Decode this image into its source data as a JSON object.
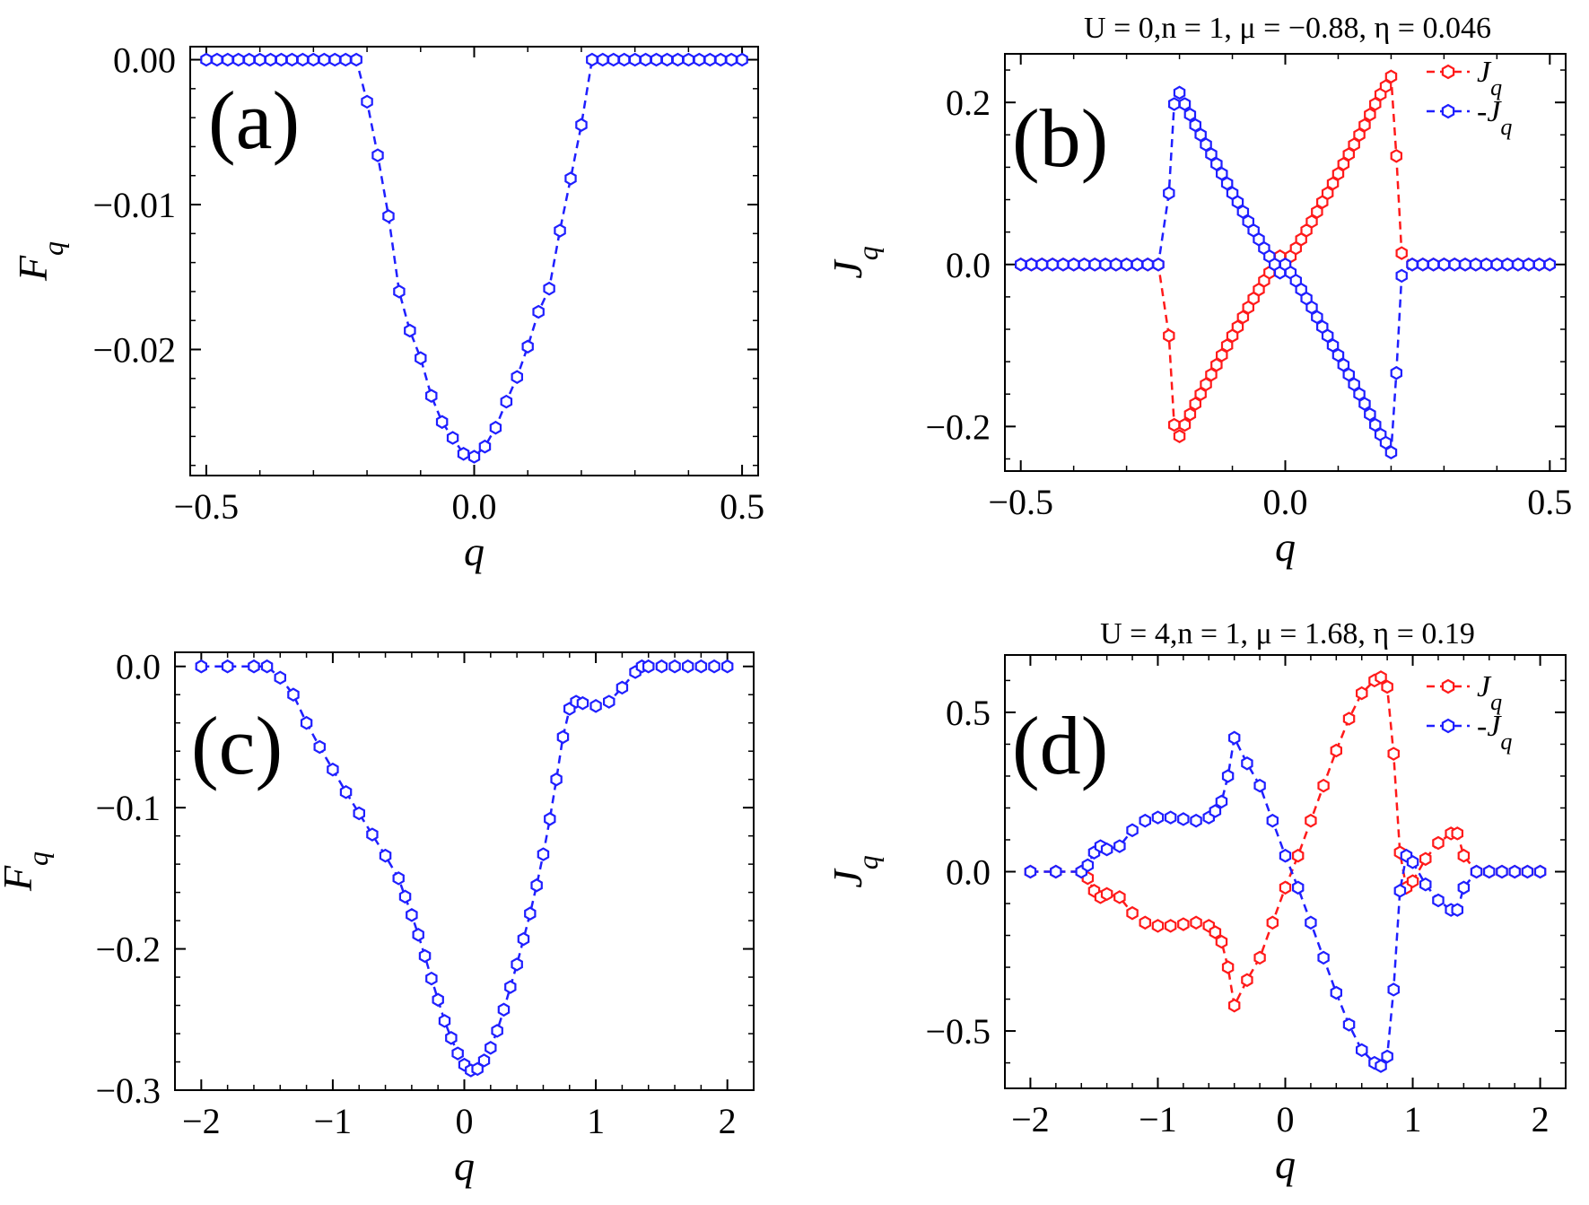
{
  "figure": {
    "colors": {
      "red": "#ff1a1a",
      "blue": "#1f1fff"
    }
  },
  "chart_data": [
    {
      "panel": "a",
      "type": "line",
      "panel_label": "(a)",
      "title": "",
      "xlabel": "q",
      "ylabel": "F_q",
      "xlim": [
        -0.53,
        0.53
      ],
      "ylim": [
        -0.0287,
        0.0009
      ],
      "xticks": [
        -0.5,
        0.0,
        0.5
      ],
      "xtick_labels": [
        "−0.5",
        "0.0",
        "0.5"
      ],
      "yticks": [
        0.0,
        -0.01,
        -0.02
      ],
      "ytick_labels": [
        "0.00",
        "−0.01",
        "−0.02"
      ],
      "legend": [],
      "series": [
        {
          "color": "#1f1fff",
          "x": [
            -0.5,
            -0.48,
            -0.46,
            -0.44,
            -0.42,
            -0.4,
            -0.38,
            -0.36,
            -0.34,
            -0.32,
            -0.3,
            -0.28,
            -0.26,
            -0.24,
            -0.22,
            -0.2,
            -0.18,
            -0.16,
            -0.14,
            -0.12,
            -0.1,
            -0.08,
            -0.06,
            -0.04,
            -0.02,
            0.0,
            0.02,
            0.04,
            0.06,
            0.08,
            0.1,
            0.12,
            0.14,
            0.16,
            0.18,
            0.2,
            0.22,
            0.24,
            0.26,
            0.28,
            0.3,
            0.32,
            0.34,
            0.36,
            0.38,
            0.4,
            0.42,
            0.44,
            0.46,
            0.48,
            0.5
          ],
          "y": [
            0,
            0,
            0,
            0,
            0,
            0,
            0,
            0,
            0,
            0,
            0,
            0,
            0,
            0,
            0,
            -0.0029,
            -0.0066,
            -0.0108,
            -0.016,
            -0.0187,
            -0.0206,
            -0.0232,
            -0.025,
            -0.0261,
            -0.0272,
            -0.0274,
            -0.0267,
            -0.0254,
            -0.0236,
            -0.0219,
            -0.0198,
            -0.0174,
            -0.0158,
            -0.0118,
            -0.0082,
            -0.0045,
            0,
            0,
            0,
            0,
            0,
            0,
            0,
            0,
            0,
            0,
            0,
            0,
            0,
            0,
            0
          ]
        }
      ]
    },
    {
      "panel": "b",
      "type": "line",
      "panel_label": "(b)",
      "title": "U = 0,n = 1, μ = −0.88, η = 0.046",
      "xlabel": "q",
      "ylabel": "J_q",
      "xlim": [
        -0.53,
        0.53
      ],
      "ylim": [
        -0.255,
        0.26
      ],
      "xticks": [
        -0.5,
        0.0,
        0.5
      ],
      "xtick_labels": [
        "−0.5",
        "0.0",
        "0.5"
      ],
      "yticks": [
        0.2,
        0.0,
        -0.2
      ],
      "ytick_labels": [
        "0.2",
        "0.0",
        "−0.2"
      ],
      "legend": [
        "J_q",
        "-J_q"
      ],
      "series": [
        {
          "name": "J_q",
          "color": "#ff1a1a",
          "x": [
            -0.5,
            -0.48,
            -0.46,
            -0.44,
            -0.42,
            -0.4,
            -0.38,
            -0.36,
            -0.34,
            -0.32,
            -0.3,
            -0.28,
            -0.26,
            -0.24,
            -0.22,
            -0.21,
            -0.2,
            -0.19,
            -0.18,
            -0.17,
            -0.16,
            -0.15,
            -0.14,
            -0.13,
            -0.12,
            -0.11,
            -0.1,
            -0.09,
            -0.08,
            -0.07,
            -0.06,
            -0.05,
            -0.04,
            -0.03,
            -0.02,
            -0.01,
            0.0,
            0.01,
            0.02,
            0.03,
            0.04,
            0.05,
            0.06,
            0.07,
            0.08,
            0.09,
            0.1,
            0.11,
            0.12,
            0.13,
            0.14,
            0.15,
            0.16,
            0.17,
            0.18,
            0.19,
            0.2,
            0.21,
            0.22,
            0.24,
            0.26,
            0.28,
            0.3,
            0.32,
            0.34,
            0.36,
            0.38,
            0.4,
            0.42,
            0.44,
            0.46,
            0.48,
            0.5
          ],
          "y": [
            0,
            0,
            0,
            0,
            0,
            0,
            0,
            0,
            0,
            0,
            0,
            0,
            0,
            0,
            -0.088,
            -0.198,
            -0.212,
            -0.198,
            -0.185,
            -0.172,
            -0.16,
            -0.148,
            -0.136,
            -0.124,
            -0.112,
            -0.1,
            -0.088,
            -0.077,
            -0.065,
            -0.053,
            -0.042,
            -0.031,
            -0.02,
            -0.01,
            0.0,
            0.01,
            0.0,
            0.01,
            0.02,
            0.031,
            0.042,
            0.053,
            0.065,
            0.077,
            0.088,
            0.1,
            0.112,
            0.124,
            0.136,
            0.148,
            0.16,
            0.172,
            0.185,
            0.198,
            0.21,
            0.22,
            0.232,
            0.134,
            0.014,
            0,
            0,
            0,
            0,
            0,
            0,
            0,
            0,
            0,
            0,
            0,
            0,
            0,
            0
          ]
        },
        {
          "name": "-J_q",
          "color": "#1f1fff",
          "x": [
            -0.5,
            -0.48,
            -0.46,
            -0.44,
            -0.42,
            -0.4,
            -0.38,
            -0.36,
            -0.34,
            -0.32,
            -0.3,
            -0.28,
            -0.26,
            -0.24,
            -0.22,
            -0.21,
            -0.2,
            -0.19,
            -0.18,
            -0.17,
            -0.16,
            -0.15,
            -0.14,
            -0.13,
            -0.12,
            -0.11,
            -0.1,
            -0.09,
            -0.08,
            -0.07,
            -0.06,
            -0.05,
            -0.04,
            -0.03,
            -0.02,
            -0.01,
            0.0,
            0.01,
            0.02,
            0.03,
            0.04,
            0.05,
            0.06,
            0.07,
            0.08,
            0.09,
            0.1,
            0.11,
            0.12,
            0.13,
            0.14,
            0.15,
            0.16,
            0.17,
            0.18,
            0.19,
            0.2,
            0.21,
            0.22,
            0.24,
            0.26,
            0.28,
            0.3,
            0.32,
            0.34,
            0.36,
            0.38,
            0.4,
            0.42,
            0.44,
            0.46,
            0.48,
            0.5
          ],
          "y": [
            0,
            0,
            0,
            0,
            0,
            0,
            0,
            0,
            0,
            0,
            0,
            0,
            0,
            0,
            0.088,
            0.198,
            0.212,
            0.198,
            0.185,
            0.172,
            0.16,
            0.148,
            0.136,
            0.124,
            0.112,
            0.1,
            0.088,
            0.077,
            0.065,
            0.053,
            0.042,
            0.031,
            0.02,
            0.01,
            0.0,
            -0.01,
            0.0,
            -0.01,
            -0.02,
            -0.031,
            -0.042,
            -0.053,
            -0.065,
            -0.077,
            -0.088,
            -0.1,
            -0.112,
            -0.124,
            -0.136,
            -0.148,
            -0.16,
            -0.172,
            -0.185,
            -0.198,
            -0.21,
            -0.22,
            -0.232,
            -0.134,
            -0.014,
            0,
            0,
            0,
            0,
            0,
            0,
            0,
            0,
            0,
            0,
            0,
            0,
            0,
            0
          ]
        }
      ]
    },
    {
      "panel": "c",
      "type": "line",
      "panel_label": "(c)",
      "title": "",
      "xlabel": "q",
      "ylabel": "F_q",
      "xlim": [
        -2.2,
        2.2
      ],
      "ylim": [
        -0.3,
        0.01
      ],
      "xticks": [
        -2,
        -1,
        0,
        1,
        2
      ],
      "xtick_labels": [
        "−2",
        "−1",
        "0",
        "1",
        "2"
      ],
      "yticks": [
        0.0,
        -0.1,
        -0.2,
        -0.3
      ],
      "ytick_labels": [
        "0.0",
        "−0.1",
        "−0.2",
        "−0.3"
      ],
      "legend": [],
      "series": [
        {
          "color": "#1f1fff",
          "x": [
            -2.0,
            -1.8,
            -1.6,
            -1.5,
            -1.4,
            -1.3,
            -1.2,
            -1.1,
            -1.0,
            -0.9,
            -0.8,
            -0.7,
            -0.6,
            -0.5,
            -0.45,
            -0.4,
            -0.35,
            -0.3,
            -0.25,
            -0.2,
            -0.15,
            -0.1,
            -0.05,
            0.0,
            0.05,
            0.1,
            0.15,
            0.2,
            0.25,
            0.3,
            0.35,
            0.4,
            0.45,
            0.5,
            0.55,
            0.6,
            0.65,
            0.7,
            0.75,
            0.8,
            0.85,
            0.9,
            1.0,
            1.1,
            1.2,
            1.3,
            1.35,
            1.4,
            1.5,
            1.6,
            1.7,
            1.8,
            1.9,
            2.0
          ],
          "y": [
            0,
            0,
            0,
            0,
            -0.008,
            -0.02,
            -0.04,
            -0.057,
            -0.073,
            -0.089,
            -0.104,
            -0.119,
            -0.134,
            -0.15,
            -0.163,
            -0.176,
            -0.19,
            -0.205,
            -0.221,
            -0.236,
            -0.251,
            -0.263,
            -0.274,
            -0.282,
            -0.286,
            -0.285,
            -0.279,
            -0.27,
            -0.258,
            -0.243,
            -0.227,
            -0.211,
            -0.193,
            -0.175,
            -0.155,
            -0.133,
            -0.108,
            -0.08,
            -0.05,
            -0.03,
            -0.025,
            -0.026,
            -0.028,
            -0.025,
            -0.015,
            -0.004,
            0,
            0,
            0,
            0,
            0,
            0,
            0,
            0
          ]
        }
      ]
    },
    {
      "panel": "d",
      "type": "line",
      "panel_label": "(d)",
      "title": "U = 4,n = 1, μ = 1.68, η = 0.19",
      "xlabel": "q",
      "ylabel": "J_q",
      "xlim": [
        -2.2,
        2.2
      ],
      "ylim": [
        -0.68,
        0.68
      ],
      "xticks": [
        -2,
        -1,
        0,
        1,
        2
      ],
      "xtick_labels": [
        "−2",
        "−1",
        "0",
        "1",
        "2"
      ],
      "yticks": [
        0.5,
        0.0,
        -0.5
      ],
      "ytick_labels": [
        "0.5",
        "0.0",
        "−0.5"
      ],
      "legend": [
        "J_q",
        "-J_q"
      ],
      "series": [
        {
          "name": "J_q",
          "color": "#ff1a1a",
          "x": [
            -2.0,
            -1.8,
            -1.6,
            -1.55,
            -1.5,
            -1.45,
            -1.4,
            -1.3,
            -1.2,
            -1.1,
            -1.0,
            -0.9,
            -0.8,
            -0.7,
            -0.6,
            -0.55,
            -0.5,
            -0.45,
            -0.4,
            -0.3,
            -0.2,
            -0.1,
            0.0,
            0.1,
            0.2,
            0.3,
            0.4,
            0.5,
            0.6,
            0.7,
            0.75,
            0.8,
            0.85,
            0.9,
            0.95,
            1.0,
            1.1,
            1.2,
            1.3,
            1.35,
            1.4,
            1.5,
            1.6,
            1.7,
            1.8,
            1.9,
            2.0
          ],
          "y": [
            0,
            0,
            0,
            -0.02,
            -0.06,
            -0.08,
            -0.07,
            -0.08,
            -0.13,
            -0.16,
            -0.17,
            -0.17,
            -0.165,
            -0.16,
            -0.17,
            -0.19,
            -0.22,
            -0.3,
            -0.42,
            -0.34,
            -0.27,
            -0.16,
            -0.05,
            0.05,
            0.16,
            0.27,
            0.38,
            0.48,
            0.56,
            0.6,
            0.61,
            0.58,
            0.37,
            0.06,
            -0.05,
            -0.03,
            0.04,
            0.09,
            0.12,
            0.12,
            0.05,
            0,
            0,
            0,
            0,
            0,
            0
          ]
        },
        {
          "name": "-J_q",
          "color": "#1f1fff",
          "x": [
            -2.0,
            -1.8,
            -1.6,
            -1.55,
            -1.5,
            -1.45,
            -1.4,
            -1.3,
            -1.2,
            -1.1,
            -1.0,
            -0.9,
            -0.8,
            -0.7,
            -0.6,
            -0.55,
            -0.5,
            -0.45,
            -0.4,
            -0.3,
            -0.2,
            -0.1,
            0.0,
            0.1,
            0.2,
            0.3,
            0.4,
            0.5,
            0.6,
            0.7,
            0.75,
            0.8,
            0.85,
            0.9,
            0.95,
            1.0,
            1.1,
            1.2,
            1.3,
            1.35,
            1.4,
            1.5,
            1.6,
            1.7,
            1.8,
            1.9,
            2.0
          ],
          "y": [
            0,
            0,
            0,
            0.02,
            0.06,
            0.08,
            0.07,
            0.08,
            0.13,
            0.16,
            0.17,
            0.17,
            0.165,
            0.16,
            0.17,
            0.19,
            0.22,
            0.3,
            0.42,
            0.34,
            0.27,
            0.16,
            0.05,
            -0.05,
            -0.16,
            -0.27,
            -0.38,
            -0.48,
            -0.56,
            -0.6,
            -0.61,
            -0.58,
            -0.37,
            -0.06,
            0.05,
            0.03,
            -0.04,
            -0.09,
            -0.12,
            -0.12,
            -0.05,
            0,
            0,
            0,
            0,
            0,
            0
          ]
        }
      ]
    }
  ]
}
